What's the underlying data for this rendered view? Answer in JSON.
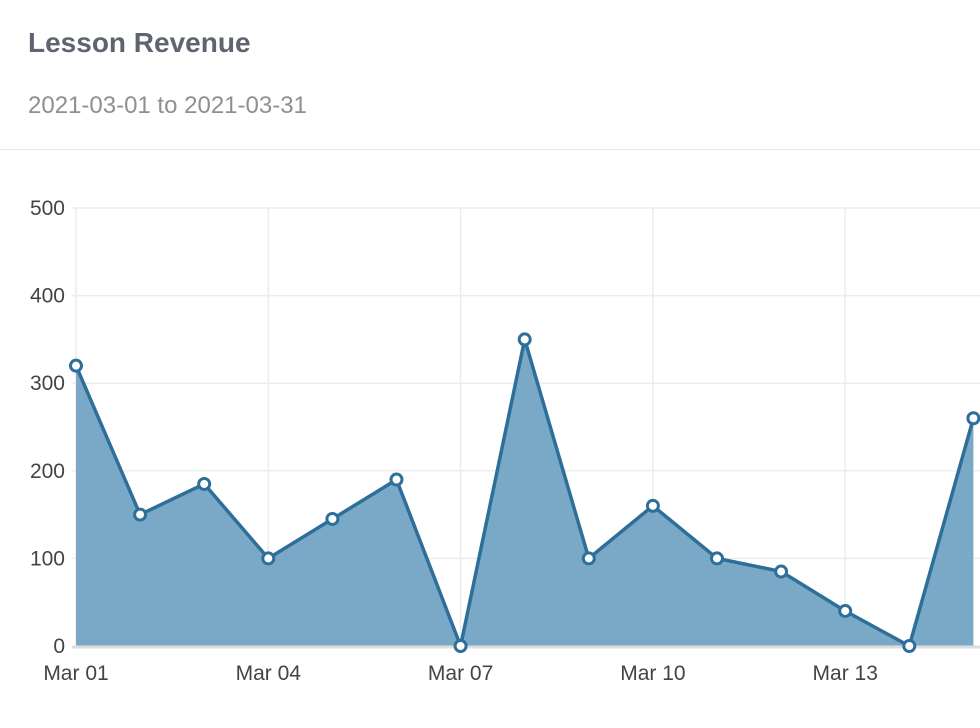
{
  "header": {
    "title": "Lesson Revenue",
    "date_range": "2021-03-01 to 2021-03-31"
  },
  "chart_data": {
    "type": "area",
    "title": "Lesson Revenue",
    "subtitle": "2021-03-01 to 2021-03-31",
    "x": [
      "2021-03-01",
      "2021-03-02",
      "2021-03-03",
      "2021-03-04",
      "2021-03-05",
      "2021-03-06",
      "2021-03-07",
      "2021-03-08",
      "2021-03-09",
      "2021-03-10",
      "2021-03-11",
      "2021-03-12",
      "2021-03-13",
      "2021-03-14",
      "2021-03-15"
    ],
    "xtick_labels": [
      "Mar 01",
      "Mar 04",
      "Mar 07",
      "Mar 10",
      "Mar 13"
    ],
    "xtick_dates": [
      "2021-03-01",
      "2021-03-04",
      "2021-03-07",
      "2021-03-10",
      "2021-03-13"
    ],
    "yticks": [
      0,
      100,
      200,
      300,
      400,
      500
    ],
    "ylim": [
      0,
      500
    ],
    "series": [
      {
        "values": [
          320,
          150,
          185,
          100,
          145,
          190,
          0,
          350,
          100,
          160,
          100,
          85,
          40,
          0,
          260
        ]
      }
    ],
    "grid": true,
    "colors": {
      "line": "#2e6f9a",
      "fill": "#7aa9c7",
      "marker_fill": "#ffffff",
      "baseline": "#dddddd"
    }
  }
}
